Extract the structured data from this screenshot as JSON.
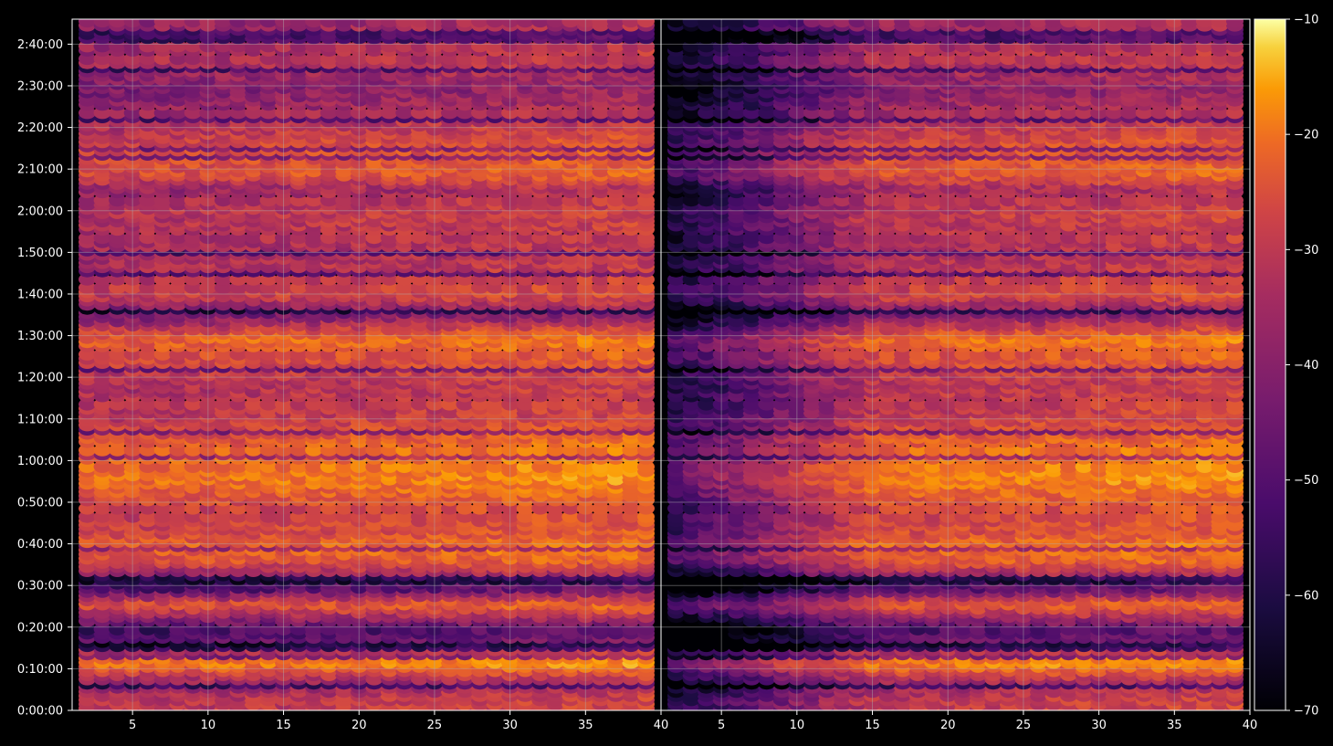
{
  "chart_data": {
    "type": "heatmap",
    "title": "",
    "xlabel": "",
    "ylabel": "",
    "x_ticks": [
      5,
      10,
      15,
      20,
      25,
      30,
      35,
      40
    ],
    "xlim": [
      1,
      40
    ],
    "ylim_seconds": [
      0,
      9960
    ],
    "y_tick_labels": [
      "0:00:00",
      "0:10:00",
      "0:20:00",
      "0:30:00",
      "0:40:00",
      "0:50:00",
      "1:00:00",
      "1:10:00",
      "1:20:00",
      "1:30:00",
      "1:40:00",
      "1:50:00",
      "2:00:00",
      "2:10:00",
      "2:20:00",
      "2:30:00",
      "2:40:00"
    ],
    "y_tick_seconds": [
      0,
      600,
      1200,
      1800,
      2400,
      3000,
      3600,
      4200,
      4800,
      5400,
      6000,
      6600,
      7200,
      7800,
      8400,
      9000,
      9600
    ],
    "grid": true,
    "colormap": "inferno",
    "colorbar": {
      "range": [
        -70,
        -10
      ],
      "ticks": [
        -10,
        -20,
        -30,
        -40,
        -50,
        -60,
        -70
      ],
      "tick_labels": [
        "−10",
        "−20",
        "−30",
        "−40",
        "−50",
        "−60",
        "−70"
      ]
    },
    "panels": [
      "left",
      "right"
    ],
    "band_levels": [
      {
        "t": 180,
        "level": -38
      },
      {
        "t": 420,
        "level": -46
      },
      {
        "t": 720,
        "level": -24
      },
      {
        "t": 960,
        "level": -50
      },
      {
        "t": 1200,
        "level": -58
      },
      {
        "t": 1560,
        "level": -30
      },
      {
        "t": 1800,
        "level": -58
      },
      {
        "t": 2190,
        "level": -32
      },
      {
        "t": 2400,
        "level": -28
      },
      {
        "t": 2580,
        "level": -34
      },
      {
        "t": 2880,
        "level": -36
      },
      {
        "t": 3360,
        "level": -26
      },
      {
        "t": 3840,
        "level": -30
      },
      {
        "t": 4290,
        "level": -38
      },
      {
        "t": 4740,
        "level": -40
      },
      {
        "t": 5400,
        "level": -28
      },
      {
        "t": 5760,
        "level": -52
      },
      {
        "t": 6000,
        "level": -36
      },
      {
        "t": 6600,
        "level": -42
      },
      {
        "t": 7200,
        "level": -38
      },
      {
        "t": 7560,
        "level": -44
      },
      {
        "t": 7740,
        "level": -32
      },
      {
        "t": 8160,
        "level": -34
      },
      {
        "t": 8580,
        "level": -42
      },
      {
        "t": 9000,
        "level": -48
      },
      {
        "t": 9420,
        "level": -40
      },
      {
        "t": 9660,
        "level": -44
      }
    ],
    "colors": {
      "background": "#000000",
      "grid": "#b0b0b0",
      "axes": "#ffffff"
    }
  }
}
